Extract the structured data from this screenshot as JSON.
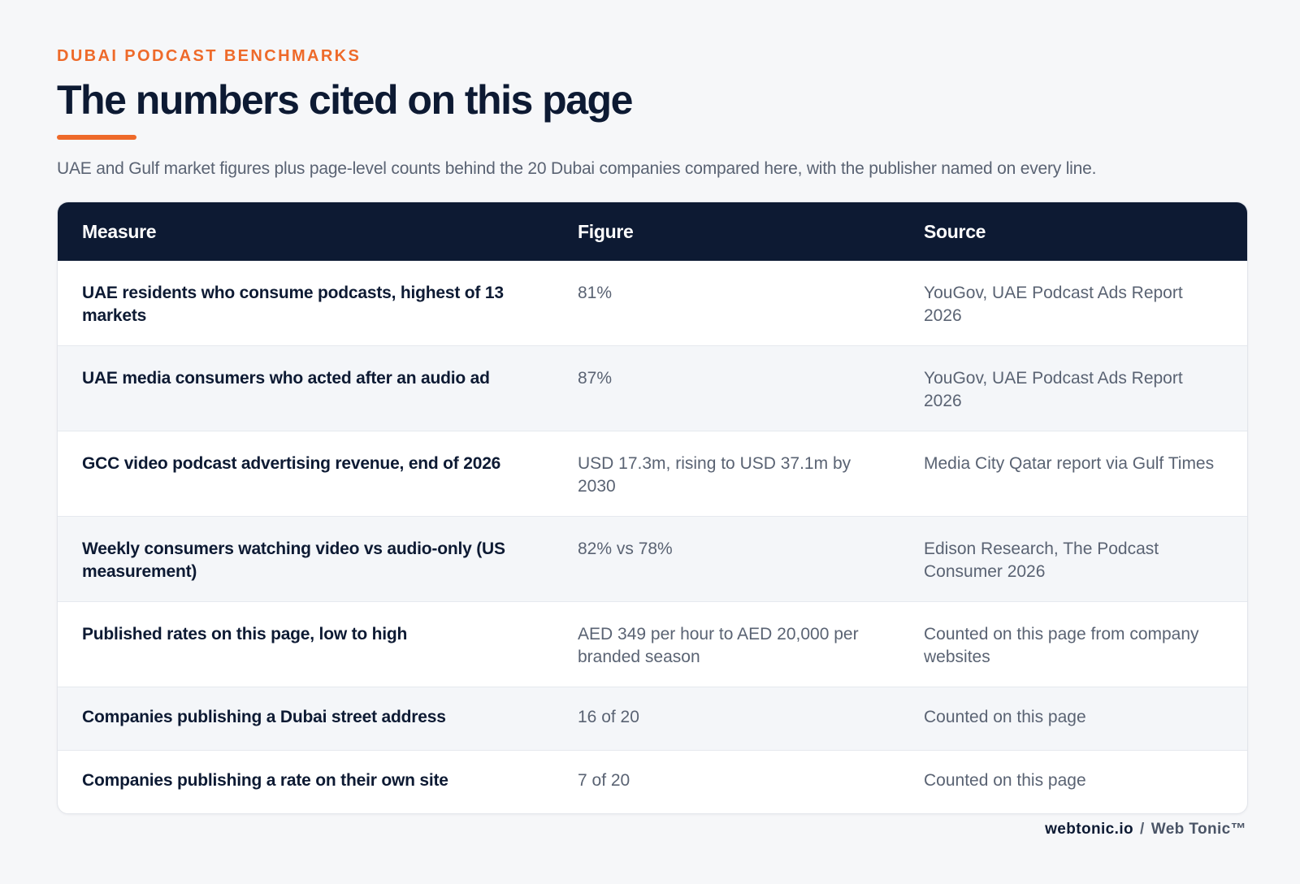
{
  "header": {
    "eyebrow": "DUBAI PODCAST BENCHMARKS",
    "title": "The numbers cited on this page",
    "lede": "UAE and Gulf market figures plus page-level counts behind the 20 Dubai companies compared here, with the publisher named on every line."
  },
  "table": {
    "columns": [
      "Measure",
      "Figure",
      "Source"
    ],
    "rows": [
      {
        "measure": "UAE residents who consume podcasts, highest of 13 markets",
        "figure": "81%",
        "source": "YouGov, UAE Podcast Ads Report 2026"
      },
      {
        "measure": "UAE media consumers who acted after an audio ad",
        "figure": "87%",
        "source": "YouGov, UAE Podcast Ads Report 2026"
      },
      {
        "measure": "GCC video podcast advertising revenue, end of 2026",
        "figure": "USD 17.3m, rising to USD 37.1m by 2030",
        "source": "Media City Qatar report via Gulf Times"
      },
      {
        "measure": "Weekly consumers watching video vs audio-only (US measurement)",
        "figure": "82% vs 78%",
        "source": "Edison Research, The Podcast Consumer 2026"
      },
      {
        "measure": "Published rates on this page, low to high",
        "figure": "AED 349 per hour to AED 20,000 per branded season",
        "source": "Counted on this page from company websites"
      },
      {
        "measure": "Companies publishing a Dubai street address",
        "figure": "16 of 20",
        "source": "Counted on this page"
      },
      {
        "measure": "Companies publishing a rate on their own site",
        "figure": "7 of 20",
        "source": "Counted on this page"
      }
    ]
  },
  "footer": {
    "domain": "webtonic.io",
    "separator": "/",
    "brand": "Web Tonic™"
  },
  "colors": {
    "accent": "#ee6a2a",
    "navy": "#0d1a33",
    "muted_text": "#5a6373",
    "background": "#f6f7f9"
  }
}
